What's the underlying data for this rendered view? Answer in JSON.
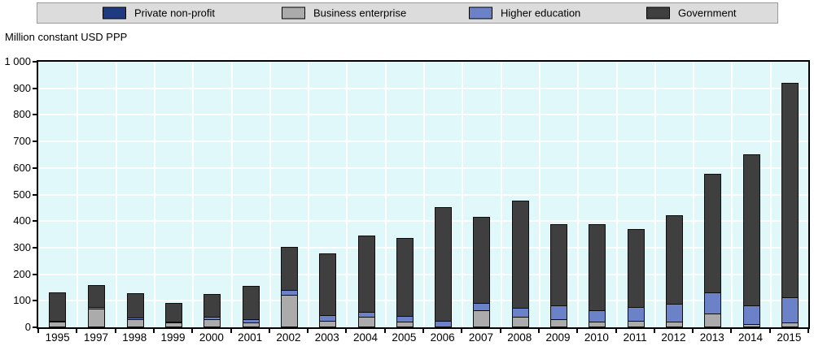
{
  "chart_data": {
    "type": "bar",
    "stacked": true,
    "title": "",
    "ylabel": "Million constant USD PPP",
    "xlabel": "",
    "legend_position": "top",
    "grid": true,
    "plot_bg_color": "#e1f8fa",
    "gridline_color": "#ffffff",
    "ylim": [
      0,
      1000
    ],
    "ytick_step": 100,
    "ytick_labels": [
      "1 000",
      "900",
      "800",
      "700",
      "600",
      "500",
      "400",
      "300",
      "200",
      "100",
      "0"
    ],
    "categories": [
      "1995",
      "1997",
      "1998",
      "1999",
      "2000",
      "2001",
      "2002",
      "2003",
      "2004",
      "2005",
      "2006",
      "2007",
      "2008",
      "2009",
      "2010",
      "2011",
      "2012",
      "2013",
      "2014",
      "2015"
    ],
    "series": [
      {
        "name": "Private non-profit",
        "color": "#1e3a80",
        "values": [
          0,
          0,
          0,
          0,
          0,
          0,
          0,
          0,
          0,
          0,
          0,
          0,
          0,
          0,
          0,
          0,
          0,
          0,
          0,
          0
        ]
      },
      {
        "name": "Business enterprise",
        "color": "#ababab",
        "values": [
          20,
          71,
          30,
          19,
          32,
          17,
          122,
          23,
          40,
          20,
          0,
          63,
          40,
          30,
          20,
          24,
          22,
          51,
          13,
          17
        ]
      },
      {
        "name": "Higher education",
        "color": "#6c82c8",
        "values": [
          7,
          13,
          13,
          8,
          15,
          18,
          25,
          28,
          23,
          28,
          23,
          33,
          39,
          58,
          48,
          59,
          74,
          86,
          75,
          101
        ]
      },
      {
        "name": "Government",
        "color": "#3f3f3f",
        "values": [
          110,
          86,
          96,
          73,
          88,
          129,
          165,
          236,
          291,
          296,
          434,
          327,
          406,
          309,
          327,
          297,
          336,
          450,
          572,
          809
        ]
      }
    ],
    "totals": [
      137,
      170,
      139,
      100,
      135,
      164,
      312,
      287,
      354,
      344,
      457,
      423,
      485,
      397,
      395,
      380,
      432,
      587,
      660,
      927
    ]
  }
}
